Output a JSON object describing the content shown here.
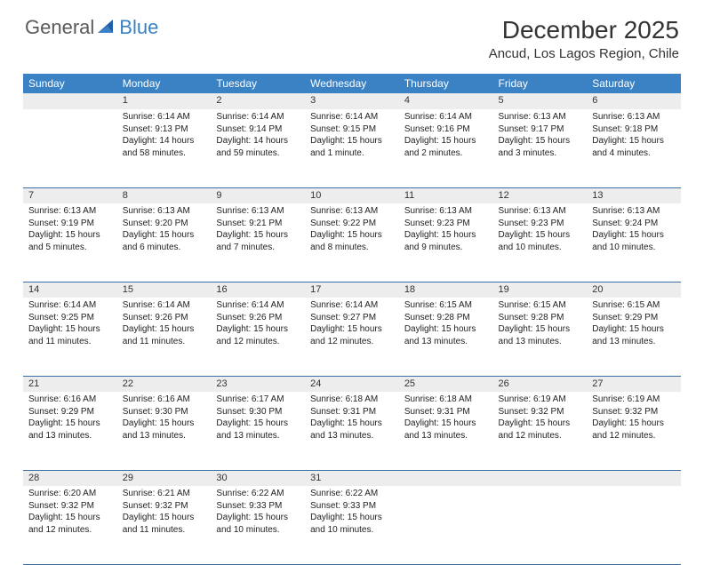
{
  "brand": {
    "first": "General",
    "second": "Blue"
  },
  "colors": {
    "header_bg": "#3a82c4",
    "header_text": "#ffffff",
    "daynum_bg": "#ededed",
    "border": "#3a6fa5",
    "brand_blue": "#3a82c4",
    "brand_gray": "#5a5a5a",
    "page_bg": "#ffffff",
    "text": "#222222"
  },
  "title": "December 2025",
  "location": "Ancud, Los Lagos Region, Chile",
  "weekdays": [
    "Sunday",
    "Monday",
    "Tuesday",
    "Wednesday",
    "Thursday",
    "Friday",
    "Saturday"
  ],
  "weeks": [
    {
      "nums": [
        "",
        "1",
        "2",
        "3",
        "4",
        "5",
        "6"
      ],
      "cells": [
        null,
        {
          "sr": "Sunrise: 6:14 AM",
          "ss": "Sunset: 9:13 PM",
          "d1": "Daylight: 14 hours",
          "d2": "and 58 minutes."
        },
        {
          "sr": "Sunrise: 6:14 AM",
          "ss": "Sunset: 9:14 PM",
          "d1": "Daylight: 14 hours",
          "d2": "and 59 minutes."
        },
        {
          "sr": "Sunrise: 6:14 AM",
          "ss": "Sunset: 9:15 PM",
          "d1": "Daylight: 15 hours",
          "d2": "and 1 minute."
        },
        {
          "sr": "Sunrise: 6:14 AM",
          "ss": "Sunset: 9:16 PM",
          "d1": "Daylight: 15 hours",
          "d2": "and 2 minutes."
        },
        {
          "sr": "Sunrise: 6:13 AM",
          "ss": "Sunset: 9:17 PM",
          "d1": "Daylight: 15 hours",
          "d2": "and 3 minutes."
        },
        {
          "sr": "Sunrise: 6:13 AM",
          "ss": "Sunset: 9:18 PM",
          "d1": "Daylight: 15 hours",
          "d2": "and 4 minutes."
        }
      ]
    },
    {
      "nums": [
        "7",
        "8",
        "9",
        "10",
        "11",
        "12",
        "13"
      ],
      "cells": [
        {
          "sr": "Sunrise: 6:13 AM",
          "ss": "Sunset: 9:19 PM",
          "d1": "Daylight: 15 hours",
          "d2": "and 5 minutes."
        },
        {
          "sr": "Sunrise: 6:13 AM",
          "ss": "Sunset: 9:20 PM",
          "d1": "Daylight: 15 hours",
          "d2": "and 6 minutes."
        },
        {
          "sr": "Sunrise: 6:13 AM",
          "ss": "Sunset: 9:21 PM",
          "d1": "Daylight: 15 hours",
          "d2": "and 7 minutes."
        },
        {
          "sr": "Sunrise: 6:13 AM",
          "ss": "Sunset: 9:22 PM",
          "d1": "Daylight: 15 hours",
          "d2": "and 8 minutes."
        },
        {
          "sr": "Sunrise: 6:13 AM",
          "ss": "Sunset: 9:23 PM",
          "d1": "Daylight: 15 hours",
          "d2": "and 9 minutes."
        },
        {
          "sr": "Sunrise: 6:13 AM",
          "ss": "Sunset: 9:23 PM",
          "d1": "Daylight: 15 hours",
          "d2": "and 10 minutes."
        },
        {
          "sr": "Sunrise: 6:13 AM",
          "ss": "Sunset: 9:24 PM",
          "d1": "Daylight: 15 hours",
          "d2": "and 10 minutes."
        }
      ]
    },
    {
      "nums": [
        "14",
        "15",
        "16",
        "17",
        "18",
        "19",
        "20"
      ],
      "cells": [
        {
          "sr": "Sunrise: 6:14 AM",
          "ss": "Sunset: 9:25 PM",
          "d1": "Daylight: 15 hours",
          "d2": "and 11 minutes."
        },
        {
          "sr": "Sunrise: 6:14 AM",
          "ss": "Sunset: 9:26 PM",
          "d1": "Daylight: 15 hours",
          "d2": "and 11 minutes."
        },
        {
          "sr": "Sunrise: 6:14 AM",
          "ss": "Sunset: 9:26 PM",
          "d1": "Daylight: 15 hours",
          "d2": "and 12 minutes."
        },
        {
          "sr": "Sunrise: 6:14 AM",
          "ss": "Sunset: 9:27 PM",
          "d1": "Daylight: 15 hours",
          "d2": "and 12 minutes."
        },
        {
          "sr": "Sunrise: 6:15 AM",
          "ss": "Sunset: 9:28 PM",
          "d1": "Daylight: 15 hours",
          "d2": "and 13 minutes."
        },
        {
          "sr": "Sunrise: 6:15 AM",
          "ss": "Sunset: 9:28 PM",
          "d1": "Daylight: 15 hours",
          "d2": "and 13 minutes."
        },
        {
          "sr": "Sunrise: 6:15 AM",
          "ss": "Sunset: 9:29 PM",
          "d1": "Daylight: 15 hours",
          "d2": "and 13 minutes."
        }
      ]
    },
    {
      "nums": [
        "21",
        "22",
        "23",
        "24",
        "25",
        "26",
        "27"
      ],
      "cells": [
        {
          "sr": "Sunrise: 6:16 AM",
          "ss": "Sunset: 9:29 PM",
          "d1": "Daylight: 15 hours",
          "d2": "and 13 minutes."
        },
        {
          "sr": "Sunrise: 6:16 AM",
          "ss": "Sunset: 9:30 PM",
          "d1": "Daylight: 15 hours",
          "d2": "and 13 minutes."
        },
        {
          "sr": "Sunrise: 6:17 AM",
          "ss": "Sunset: 9:30 PM",
          "d1": "Daylight: 15 hours",
          "d2": "and 13 minutes."
        },
        {
          "sr": "Sunrise: 6:18 AM",
          "ss": "Sunset: 9:31 PM",
          "d1": "Daylight: 15 hours",
          "d2": "and 13 minutes."
        },
        {
          "sr": "Sunrise: 6:18 AM",
          "ss": "Sunset: 9:31 PM",
          "d1": "Daylight: 15 hours",
          "d2": "and 13 minutes."
        },
        {
          "sr": "Sunrise: 6:19 AM",
          "ss": "Sunset: 9:32 PM",
          "d1": "Daylight: 15 hours",
          "d2": "and 12 minutes."
        },
        {
          "sr": "Sunrise: 6:19 AM",
          "ss": "Sunset: 9:32 PM",
          "d1": "Daylight: 15 hours",
          "d2": "and 12 minutes."
        }
      ]
    },
    {
      "nums": [
        "28",
        "29",
        "30",
        "31",
        "",
        "",
        ""
      ],
      "cells": [
        {
          "sr": "Sunrise: 6:20 AM",
          "ss": "Sunset: 9:32 PM",
          "d1": "Daylight: 15 hours",
          "d2": "and 12 minutes."
        },
        {
          "sr": "Sunrise: 6:21 AM",
          "ss": "Sunset: 9:32 PM",
          "d1": "Daylight: 15 hours",
          "d2": "and 11 minutes."
        },
        {
          "sr": "Sunrise: 6:22 AM",
          "ss": "Sunset: 9:33 PM",
          "d1": "Daylight: 15 hours",
          "d2": "and 10 minutes."
        },
        {
          "sr": "Sunrise: 6:22 AM",
          "ss": "Sunset: 9:33 PM",
          "d1": "Daylight: 15 hours",
          "d2": "and 10 minutes."
        },
        null,
        null,
        null
      ]
    }
  ]
}
